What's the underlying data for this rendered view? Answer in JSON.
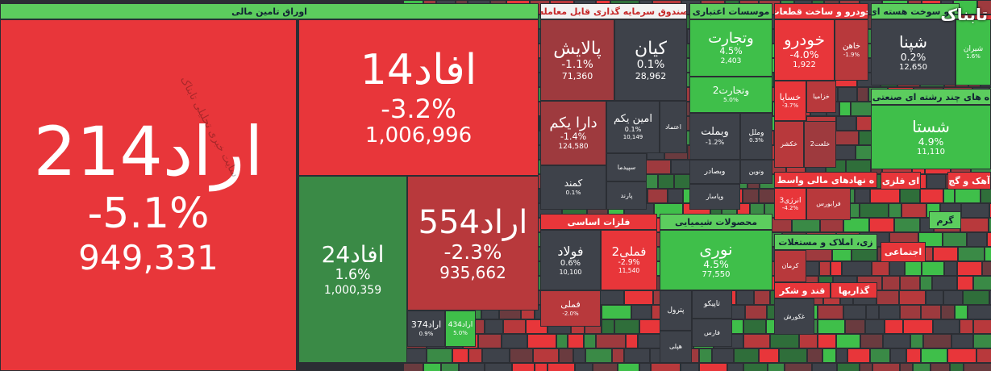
{
  "logo": "تابناک",
  "watermark": "سایت خبری تحلیلی تابناک",
  "sectors": [
    {
      "title": "اوراق تامین مالی",
      "tiles": [
        {
          "name": "اراد214",
          "change": "-5.1%",
          "volume": "949,331"
        },
        {
          "name": "افاد14",
          "change": "-3.2%",
          "volume": "1,006,996"
        },
        {
          "name": "افاد24",
          "change": "1.6%",
          "volume": "1,000,359"
        },
        {
          "name": "اراد554",
          "change": "-2.3%",
          "volume": "935,662"
        },
        {
          "name": "اراد374",
          "change": "0.9%"
        },
        {
          "name": "اراد434",
          "change": "5.0%"
        }
      ]
    },
    {
      "title": "صندوق سرمایه گذاری قابل معامله",
      "tiles": [
        {
          "name": "پالایش",
          "change": "-1.1%",
          "volume": "71,360"
        },
        {
          "name": "کیان",
          "change": "0.1%",
          "volume": "28,962"
        },
        {
          "name": "دارا یکم",
          "change": "-1.4%",
          "volume": "124,580"
        },
        {
          "name": "امین یکم",
          "change": "0.1%",
          "volume": "10,149"
        },
        {
          "name": "اعتماد"
        },
        {
          "name": "کمند",
          "change": "0.1%"
        },
        {
          "name": "سپیدما"
        },
        {
          "name": "پارند"
        }
      ]
    },
    {
      "title": "موسسات اعتباری",
      "tiles": [
        {
          "name": "وتجارت",
          "change": "4.5%",
          "volume": "2,403"
        },
        {
          "name": "وتجارت2",
          "change": "5.0%"
        },
        {
          "name": "وبملت",
          "change": "-1.2%"
        },
        {
          "name": "وملل",
          "change": "0.3%"
        },
        {
          "name": "وبصادر"
        },
        {
          "name": "ونوین"
        },
        {
          "name": "وپاسار"
        }
      ]
    },
    {
      "title": "خودرو و ساخت قطعات",
      "tiles": [
        {
          "name": "خودرو",
          "change": "-4.0%",
          "volume": "1,922"
        },
        {
          "name": "خاهن",
          "change": "-1.9%"
        },
        {
          "name": "خساپا",
          "change": "-3.7%"
        },
        {
          "name": "خزامیا"
        },
        {
          "name": "خکشر"
        },
        {
          "name": "خلعت2"
        }
      ]
    },
    {
      "title": "ک و سوخت هسته ای",
      "tiles": [
        {
          "name": "شپنا",
          "change": "0.2%",
          "volume": "12,650"
        },
        {
          "name": "شیران",
          "change": "1.6%"
        }
      ]
    },
    {
      "title": "ه های چند رشته ای صنعتی",
      "tiles": [
        {
          "name": "شستا",
          "change": "4.9%",
          "volume": "11,110"
        }
      ]
    },
    {
      "title": "فلزات اساسی",
      "tiles": [
        {
          "name": "فولاد",
          "change": "0.6%",
          "volume": "10,100"
        },
        {
          "name": "فملی2",
          "change": "-2.9%",
          "volume": "11,540"
        },
        {
          "name": "فملی",
          "change": "-2.0%"
        }
      ]
    },
    {
      "title": "محصولات شیمیایی",
      "tiles": [
        {
          "name": "نوری",
          "change": "4.5%",
          "volume": "77,550"
        },
        {
          "name": "پترول"
        },
        {
          "name": "تاپیکو"
        },
        {
          "name": "فارس"
        },
        {
          "name": "هپلی"
        }
      ]
    },
    {
      "title": "ه نهادهای مالی واسط",
      "tiles": [
        {
          "name": "انرژی3",
          "change": "-4.2%"
        },
        {
          "name": "فرابورس"
        }
      ]
    },
    {
      "title": "ای فلزی",
      "tiles": []
    },
    {
      "title": "آهک و گچ",
      "tiles": []
    },
    {
      "title": "زی، املاک و مستغلات",
      "tiles": [
        {
          "name": "کرمان"
        }
      ]
    },
    {
      "title": "قند و شکر",
      "tiles": [
        {
          "name": "غکورش"
        }
      ]
    },
    {
      "title": "گذاریها",
      "tiles": []
    },
    {
      "title": "اجتماعی",
      "tiles": []
    },
    {
      "title": "گرم",
      "tiles": []
    }
  ]
}
